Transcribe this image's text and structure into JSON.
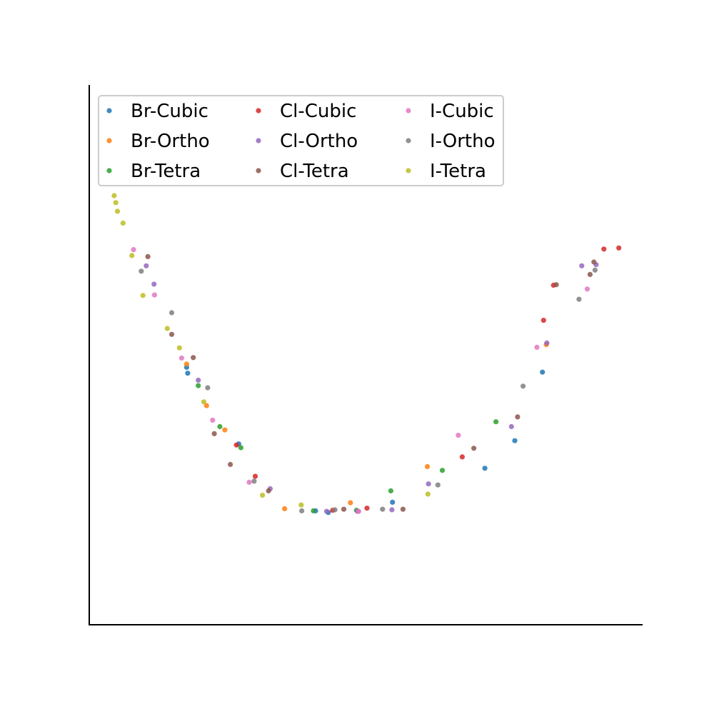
{
  "chart_data": {
    "type": "scatter",
    "title": "",
    "xlabel": "",
    "ylabel": "",
    "xticks": [],
    "yticks": [],
    "xlim": [
      0,
      1
    ],
    "ylim": [
      0,
      1
    ],
    "grid": false,
    "legend_position": "upper-left",
    "legend_columns": 3,
    "series": [
      {
        "name": "Br-Cubic",
        "color": "#1f77b4",
        "points": [
          [
            0.176,
            0.477
          ],
          [
            0.178,
            0.466
          ],
          [
            0.27,
            0.335
          ],
          [
            0.409,
            0.211
          ],
          [
            0.432,
            0.208
          ],
          [
            0.548,
            0.227
          ],
          [
            0.715,
            0.29
          ],
          [
            0.769,
            0.341
          ],
          [
            0.819,
            0.468
          ]
        ]
      },
      {
        "name": "Br-Ortho",
        "color": "#ff7f0e",
        "points": [
          [
            0.176,
            0.483
          ],
          [
            0.212,
            0.406
          ],
          [
            0.245,
            0.361
          ],
          [
            0.353,
            0.215
          ],
          [
            0.472,
            0.226
          ],
          [
            0.611,
            0.293
          ],
          [
            0.826,
            0.519
          ]
        ]
      },
      {
        "name": "Br-Tetra",
        "color": "#2ca02c",
        "points": [
          [
            0.197,
            0.443
          ],
          [
            0.236,
            0.367
          ],
          [
            0.274,
            0.328
          ],
          [
            0.405,
            0.211
          ],
          [
            0.483,
            0.212
          ],
          [
            0.545,
            0.248
          ],
          [
            0.638,
            0.286
          ],
          [
            0.735,
            0.376
          ]
        ]
      },
      {
        "name": "Cl-Cubic",
        "color": "#d62728",
        "points": [
          [
            0.266,
            0.333
          ],
          [
            0.3,
            0.275
          ],
          [
            0.44,
            0.212
          ],
          [
            0.502,
            0.216
          ],
          [
            0.674,
            0.311
          ],
          [
            0.821,
            0.564
          ],
          [
            0.839,
            0.629
          ],
          [
            0.93,
            0.696
          ],
          [
            0.957,
            0.698
          ]
        ]
      },
      {
        "name": "Cl-Ortho",
        "color": "#9467bd",
        "points": [
          [
            0.103,
            0.665
          ],
          [
            0.117,
            0.631
          ],
          [
            0.197,
            0.453
          ],
          [
            0.327,
            0.252
          ],
          [
            0.429,
            0.21
          ],
          [
            0.485,
            0.21
          ],
          [
            0.547,
            0.213
          ],
          [
            0.613,
            0.261
          ],
          [
            0.763,
            0.367
          ],
          [
            0.827,
            0.522
          ],
          [
            0.89,
            0.665
          ],
          [
            0.916,
            0.667
          ]
        ]
      },
      {
        "name": "Cl-Tetra",
        "color": "#8c564b",
        "points": [
          [
            0.106,
            0.682
          ],
          [
            0.149,
            0.538
          ],
          [
            0.188,
            0.495
          ],
          [
            0.226,
            0.354
          ],
          [
            0.255,
            0.297
          ],
          [
            0.324,
            0.248
          ],
          [
            0.46,
            0.214
          ],
          [
            0.567,
            0.214
          ],
          [
            0.695,
            0.327
          ],
          [
            0.774,
            0.385
          ],
          [
            0.844,
            0.63
          ],
          [
            0.905,
            0.649
          ],
          [
            0.912,
            0.672
          ]
        ]
      },
      {
        "name": "I-Cubic",
        "color": "#e377c2",
        "points": [
          [
            0.08,
            0.695
          ],
          [
            0.118,
            0.611
          ],
          [
            0.167,
            0.494
          ],
          [
            0.223,
            0.379
          ],
          [
            0.289,
            0.264
          ],
          [
            0.487,
            0.21
          ],
          [
            0.667,
            0.351
          ],
          [
            0.809,
            0.514
          ],
          [
            0.9,
            0.622
          ]
        ]
      },
      {
        "name": "I-Ortho",
        "color": "#7f7f7f",
        "points": [
          [
            0.094,
            0.655
          ],
          [
            0.149,
            0.578
          ],
          [
            0.214,
            0.439
          ],
          [
            0.298,
            0.266
          ],
          [
            0.384,
            0.211
          ],
          [
            0.444,
            0.213
          ],
          [
            0.53,
            0.214
          ],
          [
            0.63,
            0.259
          ],
          [
            0.784,
            0.442
          ],
          [
            0.885,
            0.603
          ],
          [
            0.914,
            0.657
          ]
        ]
      },
      {
        "name": "I-Tetra",
        "color": "#bcbd22",
        "points": [
          [
            0.045,
            0.795
          ],
          [
            0.048,
            0.782
          ],
          [
            0.051,
            0.766
          ],
          [
            0.061,
            0.744
          ],
          [
            0.077,
            0.684
          ],
          [
            0.097,
            0.61
          ],
          [
            0.141,
            0.549
          ],
          [
            0.163,
            0.513
          ],
          [
            0.207,
            0.413
          ],
          [
            0.313,
            0.24
          ],
          [
            0.383,
            0.222
          ],
          [
            0.612,
            0.242
          ]
        ]
      }
    ]
  }
}
